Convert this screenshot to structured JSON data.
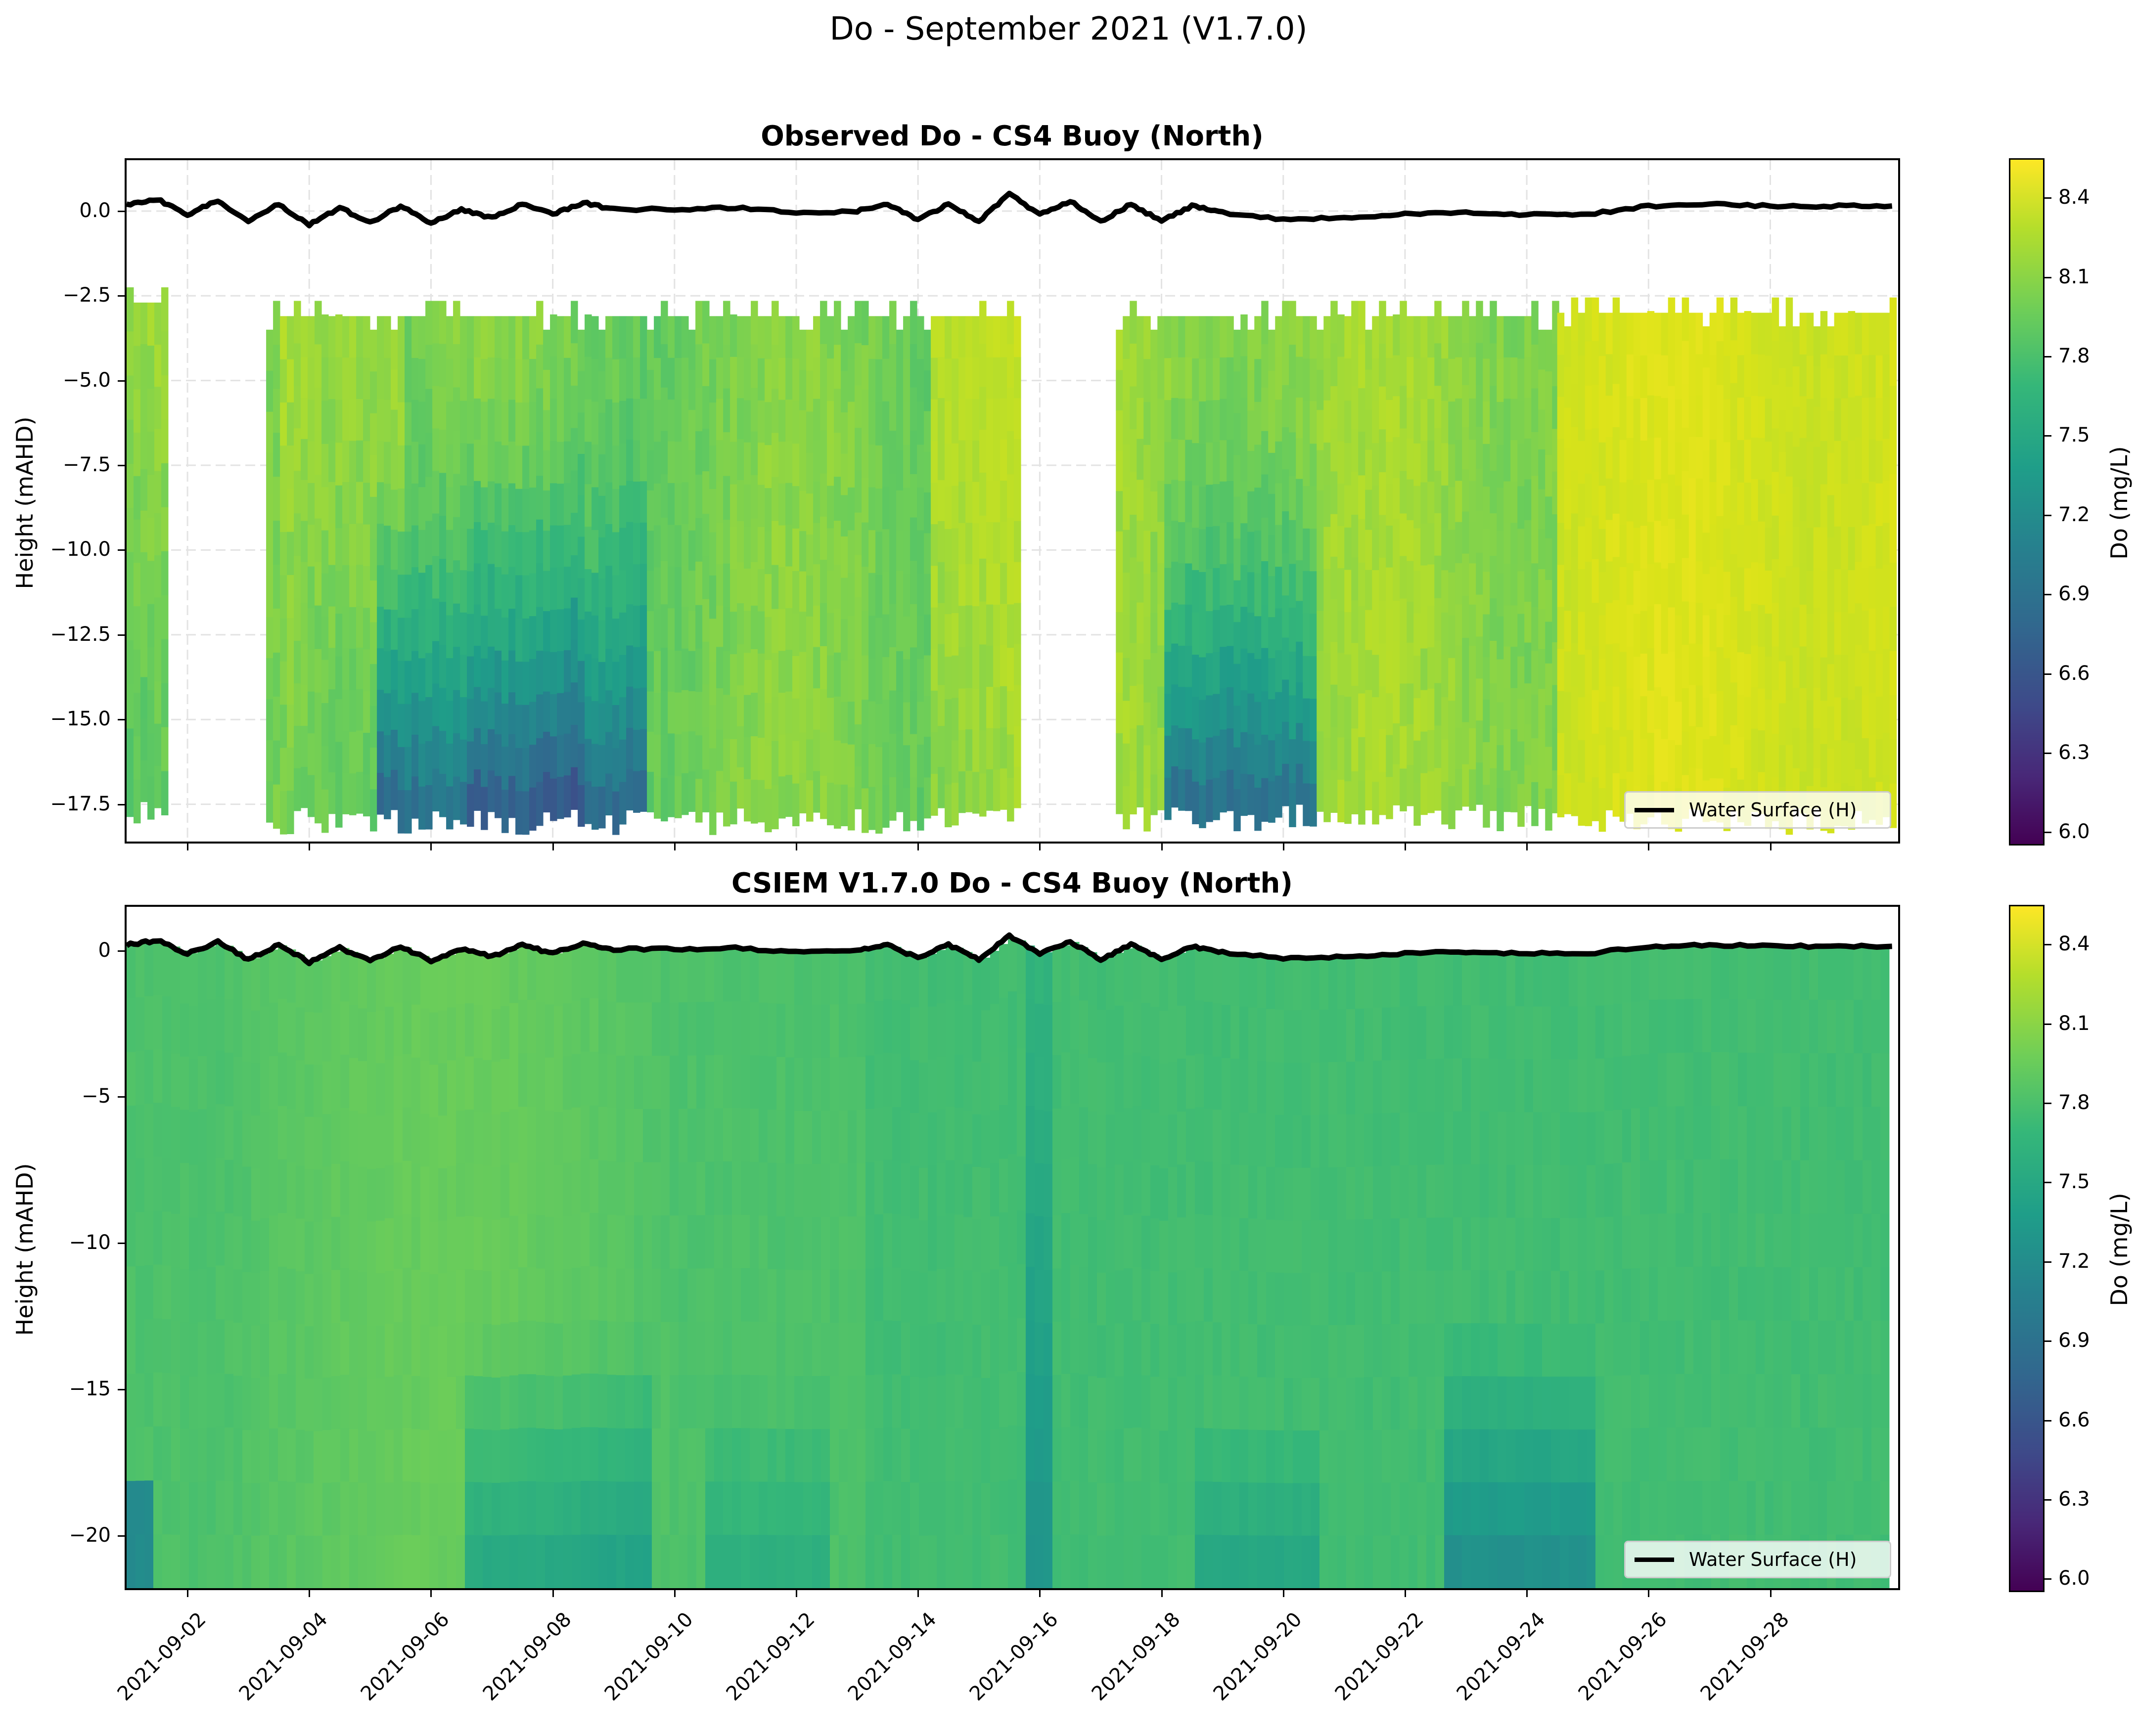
{
  "figure": {
    "suptitle": "Do - September 2021 (V1.7.0)"
  },
  "panels": [
    {
      "title": "Observed Do - CS4 Buoy (North)",
      "ylabel": "Height (mAHD)",
      "yticks": [
        "0.0",
        "−2.5",
        "−5.0",
        "−7.5",
        "−10.0",
        "−12.5",
        "−15.0",
        "−17.5"
      ],
      "legend": "Water Surface (H)",
      "colorbar_label": "Do (mg/L)"
    },
    {
      "title": "CSIEM V1.7.0 Do - CS4 Buoy (North)",
      "ylabel": "Height (mAHD)",
      "yticks": [
        "0",
        "−5",
        "−10",
        "−15",
        "−20"
      ],
      "legend": "Water Surface (H)",
      "colorbar_label": "Do (mg/L)"
    }
  ],
  "xticks": [
    "2021-09-02",
    "2021-09-04",
    "2021-09-06",
    "2021-09-08",
    "2021-09-10",
    "2021-09-12",
    "2021-09-14",
    "2021-09-16",
    "2021-09-18",
    "2021-09-20",
    "2021-09-22",
    "2021-09-24",
    "2021-09-26",
    "2021-09-28"
  ],
  "colorbar_ticks": [
    "8.4",
    "8.1",
    "7.8",
    "7.5",
    "7.2",
    "6.9",
    "6.6",
    "6.3",
    "6.0"
  ],
  "chart_data": [
    {
      "type": "heatmap",
      "title": "Observed Do - CS4 Buoy (North)",
      "xlabel": "",
      "ylabel": "Height (mAHD)",
      "x_range": [
        "2021-09-01",
        "2021-09-30"
      ],
      "ylim": [
        -18.6,
        1.5
      ],
      "colormap": "viridis",
      "clim": [
        5.95,
        8.55
      ],
      "colorbar_label": "Do (mg/L)",
      "colorbar_ticks": [
        6.0,
        6.3,
        6.6,
        6.9,
        7.2,
        7.5,
        7.8,
        8.1,
        8.4
      ],
      "grid": true,
      "legend_position": "lower right",
      "data_coverage": [
        {
          "start": "2021-09-01",
          "end": "2021-09-01T14:00",
          "top": -2.7,
          "bottom": -17.7,
          "typical_do": 7.9
        },
        {
          "start": "2021-09-03T07:00",
          "end": "2021-09-15T16:00",
          "top": -3.1,
          "bottom": -18.0,
          "typical_do": 7.8
        },
        {
          "start": "2021-09-17T06:00",
          "end": "2021-09-24T10:00",
          "top": -3.1,
          "bottom": -17.9,
          "typical_do": 7.9
        },
        {
          "start": "2021-09-24T12:00",
          "end": "2021-09-30",
          "top": -3.0,
          "bottom": -18.0,
          "typical_do": 8.25
        }
      ],
      "features": [
        {
          "desc": "low DO (~6.9-7.2) near bottom",
          "x": "2021-09-05 to 2021-09-08",
          "depth": "-12 to -18"
        },
        {
          "desc": "low DO (~6.9) near bottom",
          "x": "2021-09-18 to 2021-09-20",
          "depth": "-14 to -18"
        },
        {
          "desc": "high DO (~8.3-8.4)",
          "x": "2021-09-14 to 2021-09-16 and 2021-09-25 to 2021-09-29",
          "depth": "full column"
        }
      ],
      "series": [
        {
          "name": "Water Surface (H)",
          "type": "line",
          "color": "#000000",
          "x": [
            "2021-09-01",
            "2021-09-01T12:00",
            "2021-09-02",
            "2021-09-02T12:00",
            "2021-09-03",
            "2021-09-03T12:00",
            "2021-09-04",
            "2021-09-04T12:00",
            "2021-09-05",
            "2021-09-05T12:00",
            "2021-09-06",
            "2021-09-06T12:00",
            "2021-09-07",
            "2021-09-07T12:00",
            "2021-09-08",
            "2021-09-08T12:00",
            "2021-09-09",
            "2021-09-10",
            "2021-09-11",
            "2021-09-12",
            "2021-09-13",
            "2021-09-13T12:00",
            "2021-09-14",
            "2021-09-14T12:00",
            "2021-09-15",
            "2021-09-15T12:00",
            "2021-09-16",
            "2021-09-16T12:00",
            "2021-09-17",
            "2021-09-17T12:00",
            "2021-09-18",
            "2021-09-18T12:00",
            "2021-09-19",
            "2021-09-20",
            "2021-09-21",
            "2021-09-22",
            "2021-09-23",
            "2021-09-24",
            "2021-09-25",
            "2021-09-26",
            "2021-09-27",
            "2021-09-28",
            "2021-09-29",
            "2021-09-30"
          ],
          "values": [
            0.2,
            0.35,
            -0.1,
            0.3,
            -0.3,
            0.2,
            -0.4,
            0.1,
            -0.35,
            0.15,
            -0.35,
            0.05,
            -0.2,
            0.2,
            -0.1,
            0.25,
            0.05,
            0.05,
            0.1,
            -0.05,
            0.0,
            0.2,
            -0.25,
            0.2,
            -0.3,
            0.5,
            -0.1,
            0.3,
            -0.3,
            0.2,
            -0.3,
            0.15,
            -0.05,
            -0.25,
            -0.2,
            -0.1,
            -0.05,
            -0.1,
            -0.1,
            0.15,
            0.2,
            0.15,
            0.15,
            0.15
          ]
        }
      ]
    },
    {
      "type": "heatmap",
      "title": "CSIEM V1.7.0 Do - CS4 Buoy (North)",
      "xlabel": "",
      "ylabel": "Height (mAHD)",
      "x_range": [
        "2021-09-01",
        "2021-09-30"
      ],
      "ylim": [
        -21.8,
        1.5
      ],
      "colormap": "viridis",
      "clim": [
        5.95,
        8.55
      ],
      "colorbar_label": "Do (mg/L)",
      "colorbar_ticks": [
        6.0,
        6.3,
        6.6,
        6.9,
        7.2,
        7.5,
        7.8,
        8.1,
        8.4
      ],
      "grid": false,
      "legend_position": "lower right",
      "data_coverage": [
        {
          "start": "2021-09-01",
          "end": "2021-09-30",
          "top": "water surface",
          "bottom": -21.8,
          "typical_do": 7.6
        }
      ],
      "features": [
        {
          "desc": "slightly higher DO (~7.7-7.8)",
          "x": "2021-09-02 to 2021-09-09",
          "depth": "full column"
        },
        {
          "desc": "lower DO (~7.1-7.2) near bottom",
          "x": "2021-09-06 to 2021-09-08",
          "depth": "-16 to -21.8"
        },
        {
          "desc": "lower DO (~7.1) near bottom",
          "x": "2021-09-22 to 2021-09-24",
          "depth": "-18 to -21.8"
        },
        {
          "desc": "dark patch (~6.9)",
          "x": "2021-09-01",
          "depth": "-21 to -21.8"
        }
      ],
      "series": [
        {
          "name": "Water Surface (H)",
          "type": "line",
          "color": "#000000",
          "x": [
            "2021-09-01",
            "2021-09-01T12:00",
            "2021-09-02",
            "2021-09-02T12:00",
            "2021-09-03",
            "2021-09-03T12:00",
            "2021-09-04",
            "2021-09-04T12:00",
            "2021-09-05",
            "2021-09-05T12:00",
            "2021-09-06",
            "2021-09-06T12:00",
            "2021-09-07",
            "2021-09-07T12:00",
            "2021-09-08",
            "2021-09-08T12:00",
            "2021-09-09",
            "2021-09-10",
            "2021-09-11",
            "2021-09-12",
            "2021-09-13",
            "2021-09-13T12:00",
            "2021-09-14",
            "2021-09-14T12:00",
            "2021-09-15",
            "2021-09-15T12:00",
            "2021-09-16",
            "2021-09-16T12:00",
            "2021-09-17",
            "2021-09-17T12:00",
            "2021-09-18",
            "2021-09-18T12:00",
            "2021-09-19",
            "2021-09-20",
            "2021-09-21",
            "2021-09-22",
            "2021-09-23",
            "2021-09-24",
            "2021-09-25",
            "2021-09-26",
            "2021-09-27",
            "2021-09-28",
            "2021-09-29",
            "2021-09-30"
          ],
          "values": [
            0.2,
            0.35,
            -0.1,
            0.3,
            -0.3,
            0.2,
            -0.4,
            0.1,
            -0.35,
            0.15,
            -0.35,
            0.05,
            -0.2,
            0.2,
            -0.1,
            0.25,
            0.05,
            0.05,
            0.1,
            -0.05,
            0.0,
            0.2,
            -0.25,
            0.2,
            -0.3,
            0.5,
            -0.1,
            0.3,
            -0.3,
            0.2,
            -0.3,
            0.15,
            -0.05,
            -0.25,
            -0.2,
            -0.1,
            -0.05,
            -0.1,
            -0.1,
            0.15,
            0.2,
            0.15,
            0.15,
            0.15
          ]
        }
      ]
    }
  ]
}
